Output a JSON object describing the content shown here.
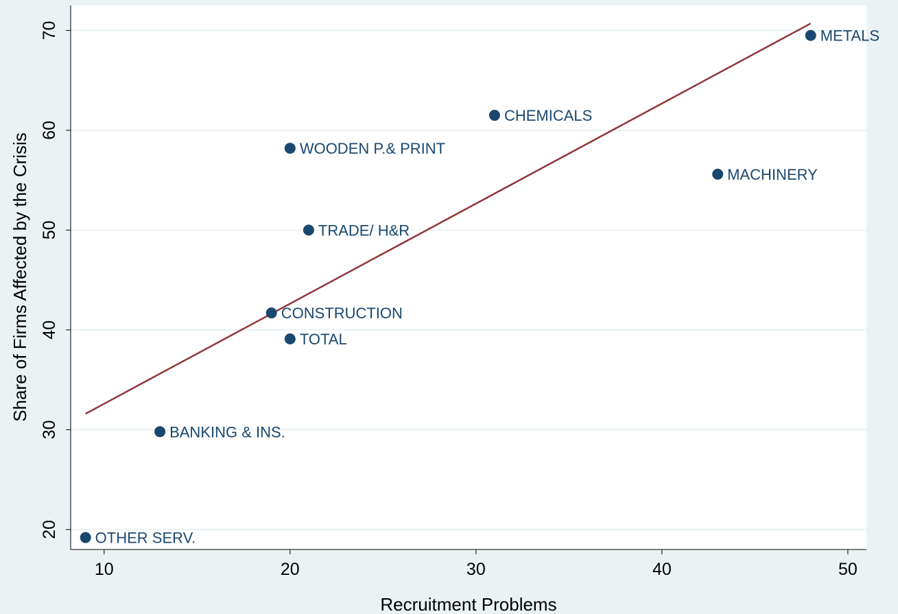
{
  "chart_data": {
    "type": "scatter",
    "xlabel": "Recruitment Problems",
    "ylabel": "Share of Firms Affected by the Crisis",
    "xlim": [
      8.2,
      51
    ],
    "ylim": [
      18,
      72.5
    ],
    "x_ticks": [
      10,
      20,
      30,
      40,
      50
    ],
    "y_ticks": [
      20,
      30,
      40,
      50,
      60,
      70
    ],
    "grid": "horizontal",
    "legend": "none",
    "point_color": "#1a476f",
    "fit_line_color": "#90353b",
    "points": [
      {
        "label": "OTHER SERV.",
        "x": 9,
        "y": 19.2
      },
      {
        "label": "BANKING & INS.",
        "x": 13,
        "y": 29.8
      },
      {
        "label": "CONSTRUCTION",
        "x": 19,
        "y": 41.7
      },
      {
        "label": "TOTAL",
        "x": 20,
        "y": 39.1
      },
      {
        "label": "WOODEN P.& PRINT",
        "x": 20,
        "y": 58.2
      },
      {
        "label": "TRADE/ H&R",
        "x": 21,
        "y": 50.0
      },
      {
        "label": "CHEMICALS",
        "x": 31,
        "y": 61.5
      },
      {
        "label": "MACHINERY",
        "x": 43,
        "y": 55.6
      },
      {
        "label": "METALS",
        "x": 48,
        "y": 69.5
      }
    ],
    "fit_line": {
      "x": [
        9,
        48
      ],
      "y": [
        31.6,
        70.7
      ]
    }
  }
}
